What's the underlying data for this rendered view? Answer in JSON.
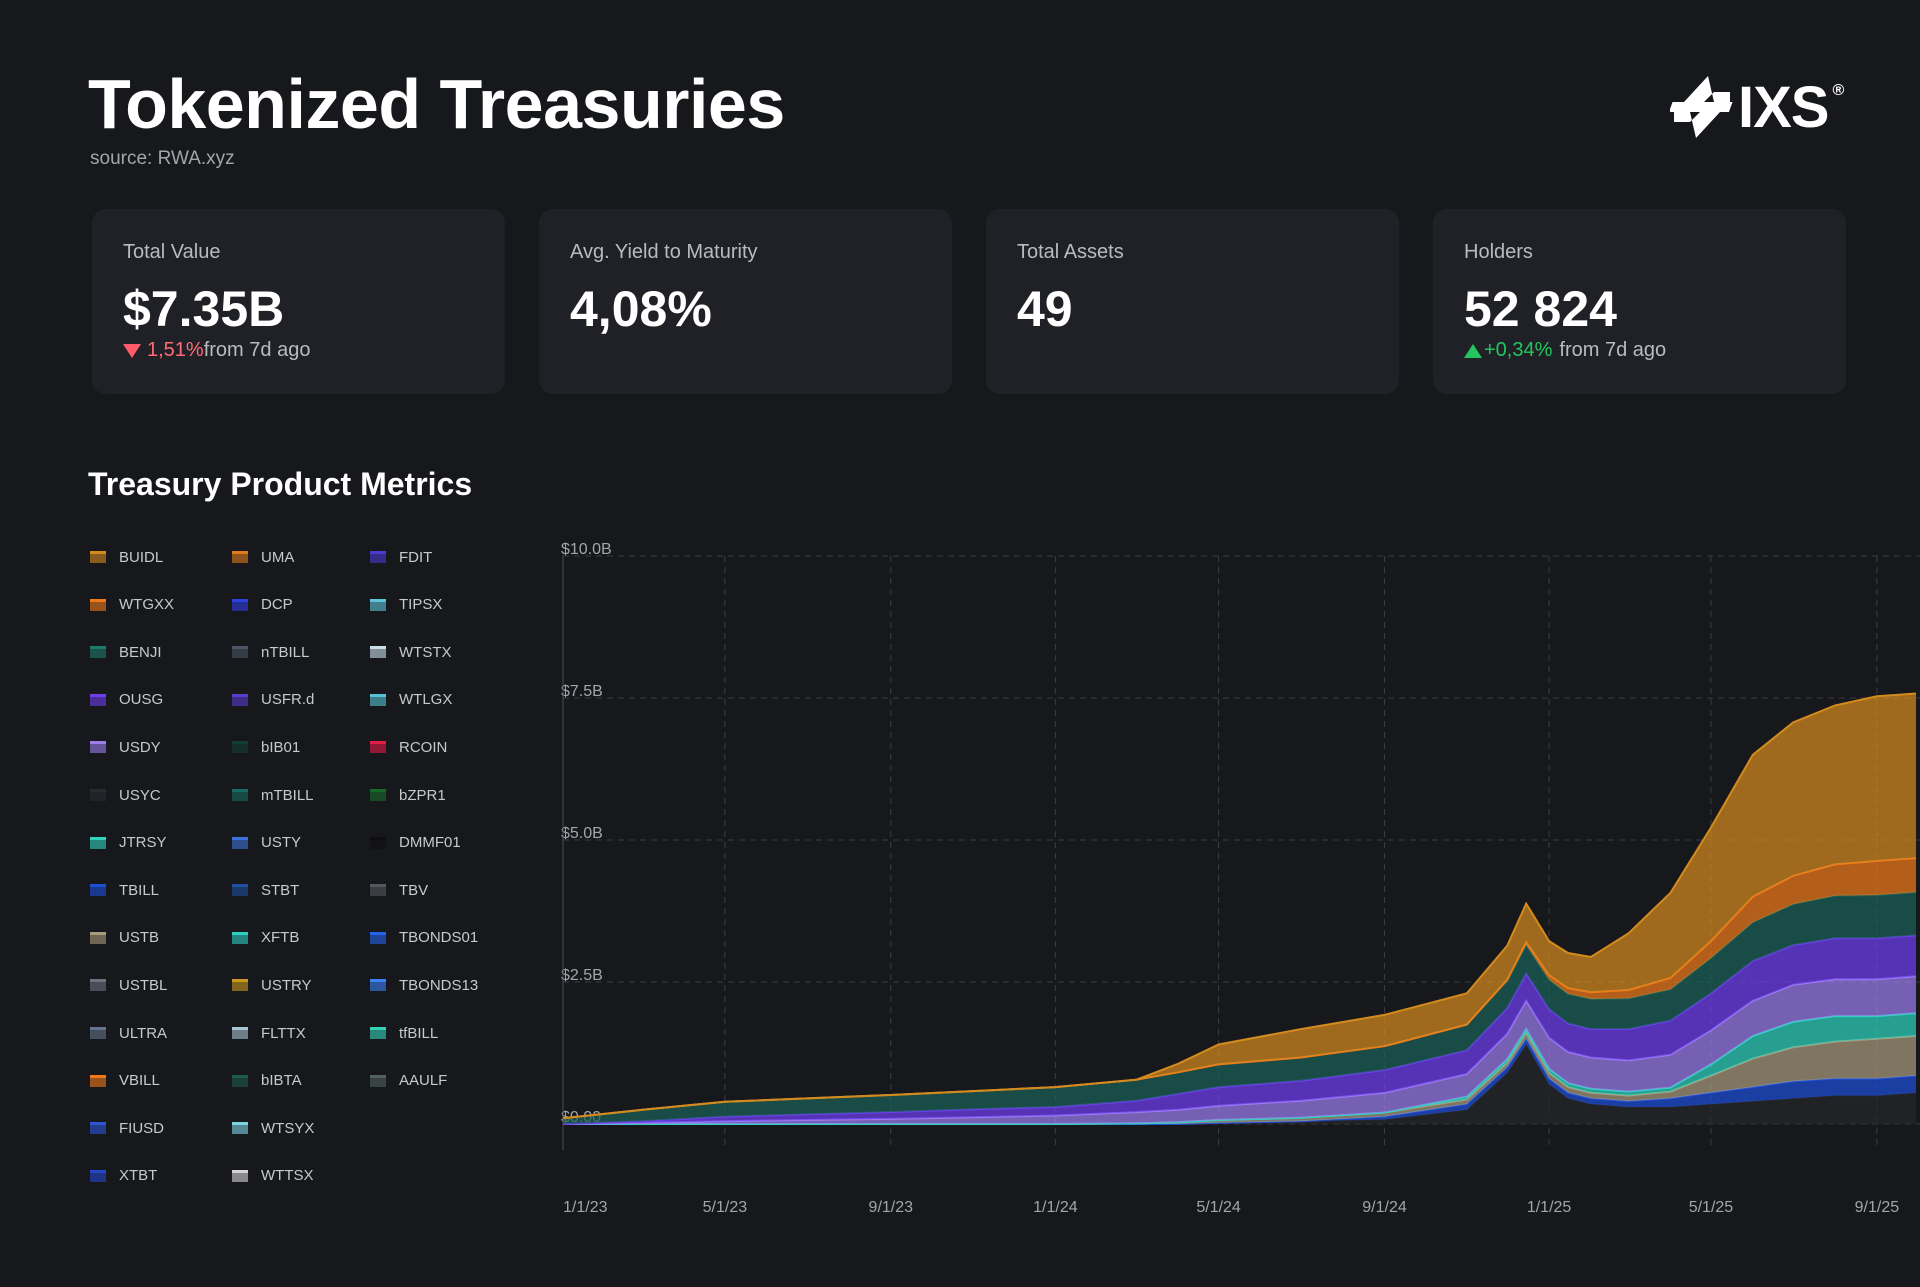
{
  "header": {
    "title": "Tokenized Treasuries",
    "source": "source: RWA.xyz",
    "logo_text": "IXS",
    "logo_reg": "®"
  },
  "cards": [
    {
      "label": "Total Value",
      "value": "$7.35B",
      "change": "1,51%",
      "change_suffix": "from 7d ago",
      "direction": "down"
    },
    {
      "label": "Avg. Yield to Maturity",
      "value": "4,08%",
      "change": "",
      "change_suffix": "",
      "direction": ""
    },
    {
      "label": "Total Assets",
      "value": "49",
      "change": "",
      "change_suffix": "",
      "direction": ""
    },
    {
      "label": "Holders",
      "value": "52 824",
      "change": "+0,34%",
      "change_suffix": "from 7d ago",
      "direction": "up"
    }
  ],
  "section": {
    "title": "Treasury Product Metrics"
  },
  "chart_data": {
    "type": "area",
    "stacked": true,
    "title": "",
    "xlabel": "",
    "ylabel": "",
    "ylim": [
      0,
      10
    ],
    "y_unit": "B USD",
    "y_ticks": [
      "$0.00",
      "$2.5B",
      "$5.0B",
      "$7.5B",
      "$10.0B"
    ],
    "y_tick_values": [
      0,
      2.5,
      5,
      7.5,
      10
    ],
    "x_ticks": [
      "1/1/23",
      "5/1/23",
      "9/1/23",
      "1/1/24",
      "5/1/24",
      "9/1/24",
      "1/1/25",
      "5/1/25",
      "9/1/25"
    ],
    "x_tick_values": [
      "2023-01-01",
      "2023-05-01",
      "2023-09-01",
      "2024-01-01",
      "2024-05-01",
      "2024-09-01",
      "2025-01-01",
      "2025-05-01",
      "2025-09-01"
    ],
    "x_range": [
      "2023-01-01",
      "2025-09-30"
    ],
    "grid": true,
    "legend_position": "left",
    "x": [
      "2023-01-01",
      "2023-03-01",
      "2023-05-01",
      "2023-07-01",
      "2023-09-01",
      "2023-11-01",
      "2024-01-01",
      "2024-03-01",
      "2024-04-01",
      "2024-05-01",
      "2024-07-01",
      "2024-09-01",
      "2024-11-01",
      "2024-12-01",
      "2024-12-15",
      "2025-01-01",
      "2025-01-15",
      "2025-02-01",
      "2025-03-01",
      "2025-04-01",
      "2025-05-01",
      "2025-06-01",
      "2025-07-01",
      "2025-08-01",
      "2025-09-01",
      "2025-09-30"
    ],
    "series": [
      {
        "name": "USYC",
        "color": "#26272b",
        "values": [
          0,
          0,
          0,
          0,
          0,
          0,
          0,
          0,
          0,
          0.02,
          0.05,
          0.08,
          0.25,
          0.9,
          1.4,
          0.7,
          0.45,
          0.35,
          0.3,
          0.3,
          0.35,
          0.4,
          0.45,
          0.5,
          0.5,
          0.55
        ]
      },
      {
        "name": "TBILL",
        "color": "#1d4ed8",
        "values": [
          0,
          0,
          0,
          0,
          0,
          0,
          0,
          0,
          0,
          0,
          0,
          0.05,
          0.1,
          0.1,
          0.1,
          0.1,
          0.1,
          0.1,
          0.1,
          0.15,
          0.2,
          0.25,
          0.3,
          0.3,
          0.3,
          0.3
        ]
      },
      {
        "name": "USTB",
        "color": "#a89a7c",
        "values": [
          0,
          0,
          0,
          0,
          0,
          0,
          0,
          0.01,
          0.03,
          0.05,
          0.06,
          0.07,
          0.08,
          0.08,
          0.1,
          0.1,
          0.1,
          0.1,
          0.1,
          0.12,
          0.3,
          0.5,
          0.6,
          0.65,
          0.7,
          0.7
        ]
      },
      {
        "name": "JTRSY",
        "color": "#2dd4bf",
        "values": [
          0,
          0,
          0,
          0,
          0,
          0,
          0,
          0,
          0,
          0,
          0,
          0,
          0.05,
          0.06,
          0.07,
          0.07,
          0.07,
          0.07,
          0.07,
          0.07,
          0.2,
          0.4,
          0.45,
          0.45,
          0.4,
          0.4
        ]
      },
      {
        "name": "USDY",
        "color": "#9b7df0",
        "values": [
          0,
          0.02,
          0.05,
          0.07,
          0.09,
          0.12,
          0.15,
          0.2,
          0.22,
          0.25,
          0.3,
          0.35,
          0.4,
          0.45,
          0.5,
          0.55,
          0.55,
          0.55,
          0.55,
          0.58,
          0.6,
          0.62,
          0.65,
          0.65,
          0.65,
          0.65
        ]
      },
      {
        "name": "OUSG",
        "color": "#6d3ff0",
        "values": [
          0,
          0.03,
          0.08,
          0.1,
          0.12,
          0.14,
          0.15,
          0.2,
          0.28,
          0.33,
          0.35,
          0.4,
          0.42,
          0.45,
          0.48,
          0.5,
          0.5,
          0.5,
          0.55,
          0.6,
          0.65,
          0.7,
          0.7,
          0.72,
          0.72,
          0.72
        ]
      },
      {
        "name": "BENJI",
        "color": "#1a6157",
        "values": [
          0.1,
          0.2,
          0.26,
          0.28,
          0.3,
          0.32,
          0.35,
          0.37,
          0.38,
          0.4,
          0.41,
          0.42,
          0.45,
          0.48,
          0.5,
          0.52,
          0.52,
          0.53,
          0.54,
          0.55,
          0.62,
          0.68,
          0.72,
          0.75,
          0.76,
          0.76
        ]
      },
      {
        "name": "WTGXX",
        "color": "#f07a1a",
        "values": [
          0,
          0,
          0,
          0,
          0,
          0,
          0,
          0,
          0,
          0,
          0,
          0,
          0,
          0.02,
          0.05,
          0.08,
          0.1,
          0.12,
          0.15,
          0.2,
          0.3,
          0.45,
          0.5,
          0.55,
          0.6,
          0.6
        ]
      },
      {
        "name": "BUIDL",
        "color": "#d48b1e",
        "values": [
          0,
          0,
          0,
          0,
          0,
          0,
          0,
          0,
          0.15,
          0.35,
          0.5,
          0.55,
          0.55,
          0.6,
          0.68,
          0.6,
          0.62,
          0.62,
          1.0,
          1.5,
          2.0,
          2.5,
          2.7,
          2.8,
          2.9,
          2.9
        ]
      }
    ],
    "legend": [
      {
        "name": "BUIDL",
        "color": "#d48b1e"
      },
      {
        "name": "WTGXX",
        "color": "#f07a1a"
      },
      {
        "name": "BENJI",
        "color": "#1f7a6c"
      },
      {
        "name": "OUSG",
        "color": "#6d3ff0"
      },
      {
        "name": "USDY",
        "color": "#9b7df0"
      },
      {
        "name": "USYC",
        "color": "#2a2b30"
      },
      {
        "name": "JTRSY",
        "color": "#2dd4bf"
      },
      {
        "name": "TBILL",
        "color": "#1d4ed8"
      },
      {
        "name": "USTB",
        "color": "#a89a7c"
      },
      {
        "name": "USTBL",
        "color": "#6b7280"
      },
      {
        "name": "ULTRA",
        "color": "#64748b"
      },
      {
        "name": "VBILL",
        "color": "#f07a1a"
      },
      {
        "name": "FIUSD",
        "color": "#2b55d6"
      },
      {
        "name": "XTBT",
        "color": "#2447c9"
      },
      {
        "name": "UMA",
        "color": "#e07b1a"
      },
      {
        "name": "DCP",
        "color": "#2d3fe0"
      },
      {
        "name": "nTBILL",
        "color": "#4b5563"
      },
      {
        "name": "USFR.d",
        "color": "#5b3ccf"
      },
      {
        "name": "bIB01",
        "color": "#123d30"
      },
      {
        "name": "mTBILL",
        "color": "#1a6a60"
      },
      {
        "name": "USTY",
        "color": "#3a73d8"
      },
      {
        "name": "STBT",
        "color": "#1e4fa0"
      },
      {
        "name": "XFTB",
        "color": "#2bd1c0"
      },
      {
        "name": "USTRY",
        "color": "#c99a1e"
      },
      {
        "name": "FLTTX",
        "color": "#a8c4d0"
      },
      {
        "name": "bIBTA",
        "color": "#1f5c4c"
      },
      {
        "name": "WTSYX",
        "color": "#7dd3e6"
      },
      {
        "name": "WTTSX",
        "color": "#d4d4d8"
      },
      {
        "name": "FDIT",
        "color": "#4a3ad0"
      },
      {
        "name": "TIPSX",
        "color": "#5ec5d8"
      },
      {
        "name": "WTSTX",
        "color": "#c9e0e8"
      },
      {
        "name": "WTLGX",
        "color": "#56c3d5"
      },
      {
        "name": "RCOIN",
        "color": "#e11d48"
      },
      {
        "name": "bZPR1",
        "color": "#156a2a"
      },
      {
        "name": "DMMF01",
        "color": "#0f0f10"
      },
      {
        "name": "TBV",
        "color": "#55575c"
      },
      {
        "name": "TBONDS01",
        "color": "#2563eb"
      },
      {
        "name": "TBONDS13",
        "color": "#3b82f6"
      },
      {
        "name": "tfBILL",
        "color": "#34d3b8"
      },
      {
        "name": "AAULF",
        "color": "#52605e"
      }
    ]
  }
}
